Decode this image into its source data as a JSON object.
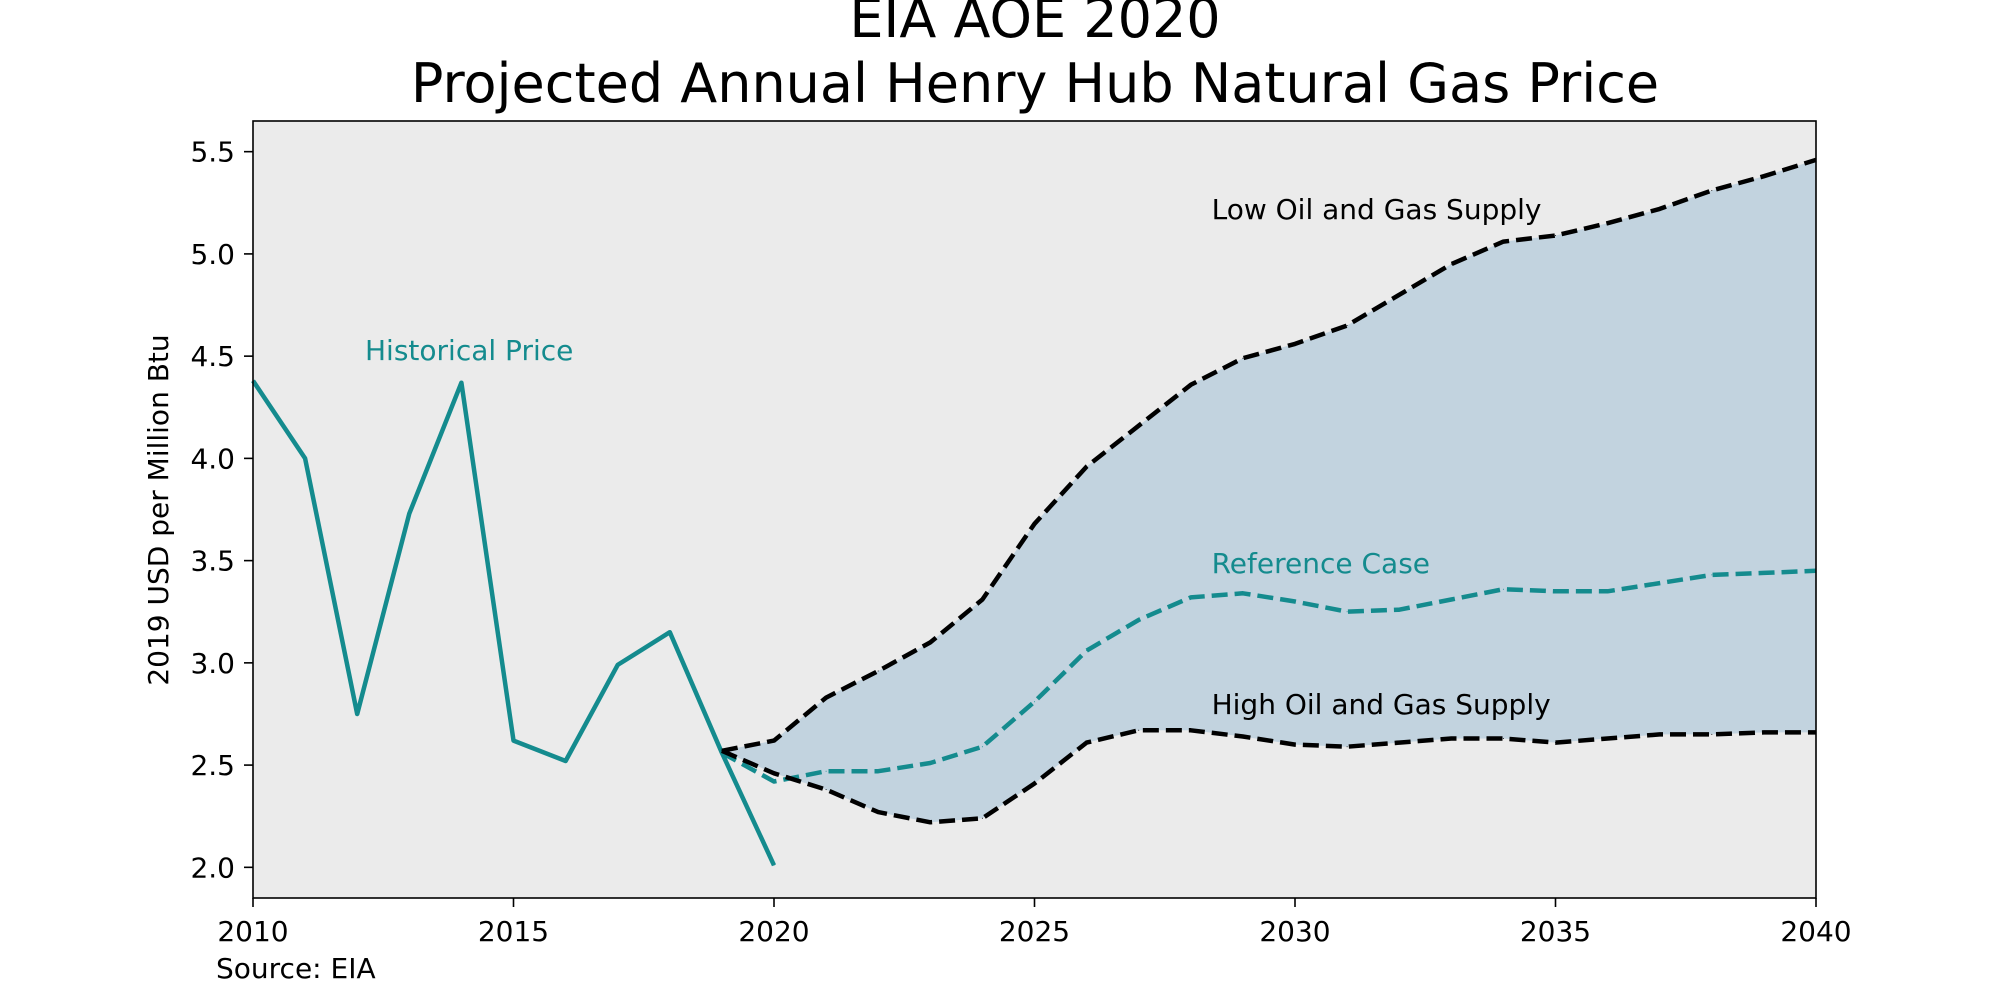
{
  "chart_data": {
    "type": "line",
    "title_line1": "EIA AOE 2020",
    "title_line2": "Projected Annual Henry Hub Natural Gas Price",
    "ylabel": "2019 USD per Million Btu",
    "xlabel": "",
    "source": "Source: EIA",
    "xlim": [
      2010,
      2040
    ],
    "ylim": [
      1.85,
      5.65
    ],
    "xticks": [
      2010,
      2015,
      2020,
      2025,
      2030,
      2035,
      2040
    ],
    "yticks": [
      2.0,
      2.5,
      3.0,
      3.5,
      4.0,
      4.5,
      5.0,
      5.5
    ],
    "grid": false,
    "plot_background": "#ebebeb",
    "band_color": "#c2d3df",
    "series": [
      {
        "name": "Historical Price",
        "style": "solid",
        "color": "#148b8e",
        "x": [
          2010,
          2011,
          2012,
          2013,
          2014,
          2015,
          2016,
          2017,
          2018,
          2019,
          2020
        ],
        "values": [
          4.38,
          4.0,
          2.75,
          3.73,
          4.37,
          2.62,
          2.52,
          2.99,
          3.15,
          2.56,
          2.01
        ]
      },
      {
        "name": "Reference Case",
        "style": "dashed",
        "color": "#148b8e",
        "x": [
          2019,
          2020,
          2021,
          2022,
          2023,
          2024,
          2025,
          2026,
          2027,
          2028,
          2029,
          2030,
          2031,
          2032,
          2033,
          2034,
          2035,
          2036,
          2037,
          2038,
          2039,
          2040
        ],
        "values": [
          2.56,
          2.42,
          2.47,
          2.47,
          2.51,
          2.59,
          2.81,
          3.06,
          3.21,
          3.32,
          3.34,
          3.3,
          3.25,
          3.26,
          3.31,
          3.36,
          3.35,
          3.35,
          3.39,
          3.43,
          3.44,
          3.45
        ]
      },
      {
        "name": "Low Oil and Gas Supply",
        "style": "dashed",
        "color": "#000000",
        "x": [
          2019,
          2020,
          2021,
          2022,
          2023,
          2024,
          2025,
          2026,
          2027,
          2028,
          2029,
          2030,
          2031,
          2032,
          2033,
          2034,
          2035,
          2036,
          2037,
          2038,
          2039,
          2040
        ],
        "values": [
          2.57,
          2.62,
          2.83,
          2.96,
          3.1,
          3.31,
          3.68,
          3.96,
          4.16,
          4.36,
          4.49,
          4.56,
          4.65,
          4.8,
          4.95,
          5.06,
          5.09,
          5.15,
          5.22,
          5.31,
          5.38,
          5.46
        ]
      },
      {
        "name": "High Oil and Gas Supply",
        "style": "dashed",
        "color": "#000000",
        "x": [
          2019,
          2020,
          2021,
          2022,
          2023,
          2024,
          2025,
          2026,
          2027,
          2028,
          2029,
          2030,
          2031,
          2032,
          2033,
          2034,
          2035,
          2036,
          2037,
          2038,
          2039,
          2040
        ],
        "values": [
          2.57,
          2.46,
          2.38,
          2.27,
          2.22,
          2.24,
          2.41,
          2.61,
          2.67,
          2.67,
          2.64,
          2.6,
          2.59,
          2.61,
          2.63,
          2.63,
          2.61,
          2.63,
          2.65,
          2.65,
          2.66,
          2.66
        ]
      }
    ],
    "annotations": [
      {
        "text": "Historical Price",
        "x": 2012.15,
        "y": 4.48,
        "color": "#148b8e"
      },
      {
        "text": "Low Oil and Gas Supply",
        "x": 2028.4,
        "y": 5.17,
        "color": "#000000"
      },
      {
        "text": "Reference Case",
        "x": 2028.4,
        "y": 3.44,
        "color": "#148b8e"
      },
      {
        "text": "High Oil and Gas Supply",
        "x": 2028.4,
        "y": 2.75,
        "color": "#000000"
      }
    ]
  }
}
